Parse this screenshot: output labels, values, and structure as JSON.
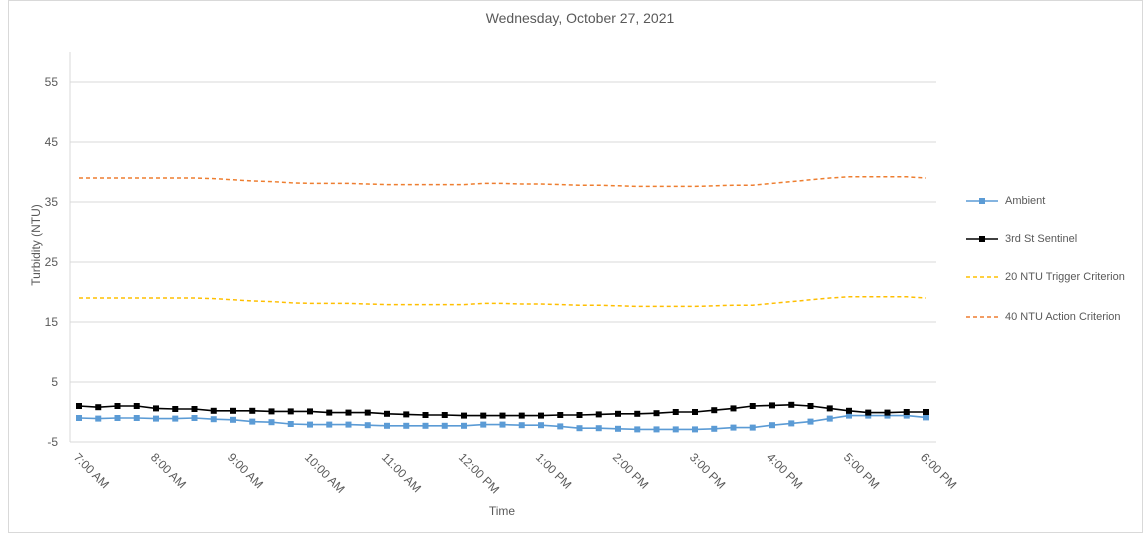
{
  "chart_data": {
    "type": "line",
    "title": "Wednesday, October 27, 2021",
    "xlabel": "Time",
    "ylabel": "Turbidity (NTU)",
    "ylim": [
      -5,
      60
    ],
    "yticks": [
      -5,
      5,
      15,
      25,
      35,
      45,
      55
    ],
    "grid": true,
    "legend_position": "right",
    "x_tick_labels": [
      "7:00 AM",
      "8:00 AM",
      "9:00 AM",
      "10:00 AM",
      "11:00 AM",
      "12:00 PM",
      "1:00 PM",
      "2:00 PM",
      "3:00 PM",
      "4:00 PM",
      "5:00 PM",
      "6:00 PM"
    ],
    "x": [
      "7:00 AM",
      "7:15 AM",
      "7:30 AM",
      "7:45 AM",
      "8:00 AM",
      "8:15 AM",
      "8:30 AM",
      "8:45 AM",
      "9:00 AM",
      "9:15 AM",
      "9:30 AM",
      "9:45 AM",
      "10:00 AM",
      "10:15 AM",
      "10:30 AM",
      "10:45 AM",
      "11:00 AM",
      "11:15 AM",
      "11:30 AM",
      "11:45 AM",
      "12:00 PM",
      "12:15 PM",
      "12:30 PM",
      "12:45 PM",
      "1:00 PM",
      "1:15 PM",
      "1:30 PM",
      "1:45 PM",
      "2:00 PM",
      "2:15 PM",
      "2:30 PM",
      "2:45 PM",
      "3:00 PM",
      "3:15 PM",
      "3:30 PM",
      "3:45 PM",
      "4:00 PM",
      "4:15 PM",
      "4:30 PM",
      "4:45 PM",
      "5:00 PM",
      "5:15 PM",
      "5:30 PM",
      "5:45 PM",
      "6:00 PM"
    ],
    "series": [
      {
        "name": "Ambient",
        "color": "#5b9bd5",
        "style": "solid-square-markers",
        "values": [
          -1.0,
          -1.1,
          -1.0,
          -1.0,
          -1.1,
          -1.1,
          -1.0,
          -1.2,
          -1.3,
          -1.6,
          -1.7,
          -2.0,
          -2.1,
          -2.1,
          -2.1,
          -2.2,
          -2.3,
          -2.3,
          -2.3,
          -2.3,
          -2.3,
          -2.1,
          -2.1,
          -2.2,
          -2.2,
          -2.4,
          -2.7,
          -2.7,
          -2.8,
          -2.9,
          -2.9,
          -2.9,
          -2.9,
          -2.8,
          -2.6,
          -2.6,
          -2.2,
          -1.9,
          -1.6,
          -1.1,
          -0.6,
          -0.6,
          -0.6,
          -0.6,
          -0.9
        ]
      },
      {
        "name": "3rd St Sentinel",
        "color": "#000000",
        "style": "solid-square-markers",
        "values": [
          1.0,
          0.8,
          1.0,
          1.0,
          0.6,
          0.5,
          0.5,
          0.2,
          0.2,
          0.2,
          0.1,
          0.1,
          0.1,
          -0.1,
          -0.1,
          -0.1,
          -0.3,
          -0.4,
          -0.5,
          -0.5,
          -0.6,
          -0.6,
          -0.6,
          -0.6,
          -0.6,
          -0.5,
          -0.5,
          -0.4,
          -0.3,
          -0.3,
          -0.2,
          0.0,
          0.0,
          0.3,
          0.6,
          1.0,
          1.1,
          1.2,
          1.0,
          0.6,
          0.2,
          -0.1,
          -0.1,
          0.0,
          0.0
        ]
      },
      {
        "name": "20 NTU Trigger Criterion",
        "color": "#ffc000",
        "style": "dashed",
        "values": [
          19.0,
          19.0,
          19.0,
          19.0,
          19.0,
          19.0,
          19.0,
          18.9,
          18.7,
          18.5,
          18.4,
          18.2,
          18.1,
          18.1,
          18.1,
          18.0,
          17.9,
          17.9,
          17.9,
          17.9,
          17.9,
          18.1,
          18.1,
          18.0,
          18.0,
          17.9,
          17.8,
          17.8,
          17.7,
          17.6,
          17.6,
          17.6,
          17.6,
          17.7,
          17.8,
          17.8,
          18.1,
          18.4,
          18.7,
          19.0,
          19.2,
          19.2,
          19.2,
          19.2,
          19.0
        ]
      },
      {
        "name": "40 NTU Action Criterion",
        "color": "#ed7d31",
        "style": "dashed",
        "values": [
          39.0,
          39.0,
          39.0,
          39.0,
          39.0,
          39.0,
          39.0,
          38.9,
          38.7,
          38.5,
          38.4,
          38.2,
          38.1,
          38.1,
          38.1,
          38.0,
          37.9,
          37.9,
          37.9,
          37.9,
          37.9,
          38.1,
          38.1,
          38.0,
          38.0,
          37.9,
          37.8,
          37.8,
          37.7,
          37.6,
          37.6,
          37.6,
          37.6,
          37.7,
          37.8,
          37.8,
          38.1,
          38.4,
          38.7,
          39.0,
          39.2,
          39.2,
          39.2,
          39.2,
          39.0
        ]
      }
    ]
  }
}
